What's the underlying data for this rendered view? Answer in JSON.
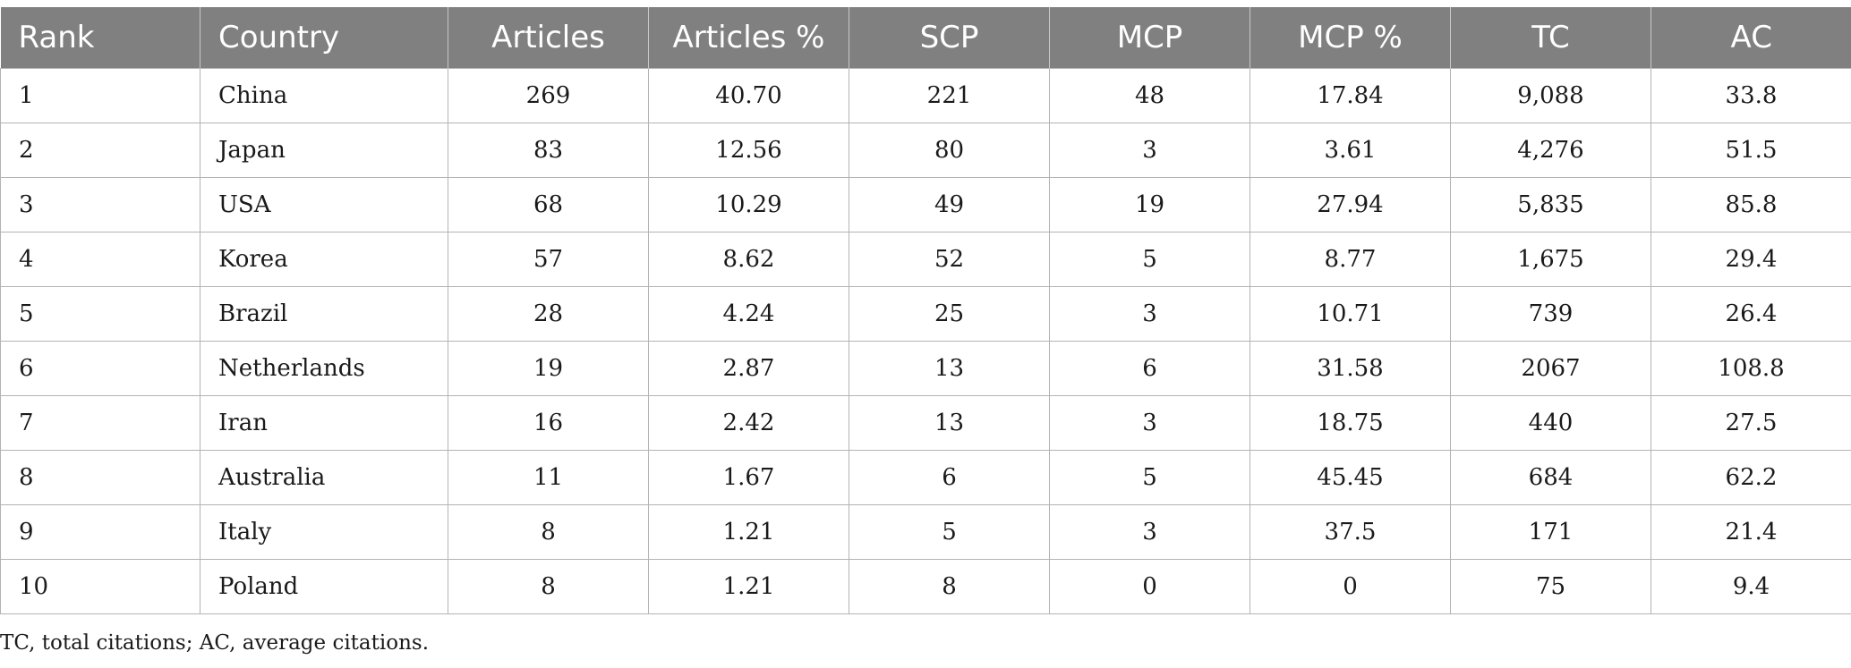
{
  "table": {
    "headers": [
      "Rank",
      "Country",
      "Articles",
      "Articles %",
      "SCP",
      "MCP",
      "MCP %",
      "TC",
      "AC"
    ],
    "rows": [
      [
        "1",
        "China",
        "269",
        "40.70",
        "221",
        "48",
        "17.84",
        "9,088",
        "33.8"
      ],
      [
        "2",
        "Japan",
        "83",
        "12.56",
        "80",
        "3",
        "3.61",
        "4,276",
        "51.5"
      ],
      [
        "3",
        "USA",
        "68",
        "10.29",
        "49",
        "19",
        "27.94",
        "5,835",
        "85.8"
      ],
      [
        "4",
        "Korea",
        "57",
        "8.62",
        "52",
        "5",
        "8.77",
        "1,675",
        "29.4"
      ],
      [
        "5",
        "Brazil",
        "28",
        "4.24",
        "25",
        "3",
        "10.71",
        "739",
        "26.4"
      ],
      [
        "6",
        "Netherlands",
        "19",
        "2.87",
        "13",
        "6",
        "31.58",
        "2067",
        "108.8"
      ],
      [
        "7",
        "Iran",
        "16",
        "2.42",
        "13",
        "3",
        "18.75",
        "440",
        "27.5"
      ],
      [
        "8",
        "Australia",
        "11",
        "1.67",
        "6",
        "5",
        "45.45",
        "684",
        "62.2"
      ],
      [
        "9",
        "Italy",
        "8",
        "1.21",
        "5",
        "3",
        "37.5",
        "171",
        "21.4"
      ],
      [
        "10",
        "Poland",
        "8",
        "1.21",
        "8",
        "0",
        "0",
        "75",
        "9.4"
      ]
    ]
  },
  "footnote": "TC, total citations; AC, average citations.",
  "colors": {
    "header_bg": "#808080",
    "header_text": "#ffffff",
    "grid": "#b3b3b3"
  }
}
